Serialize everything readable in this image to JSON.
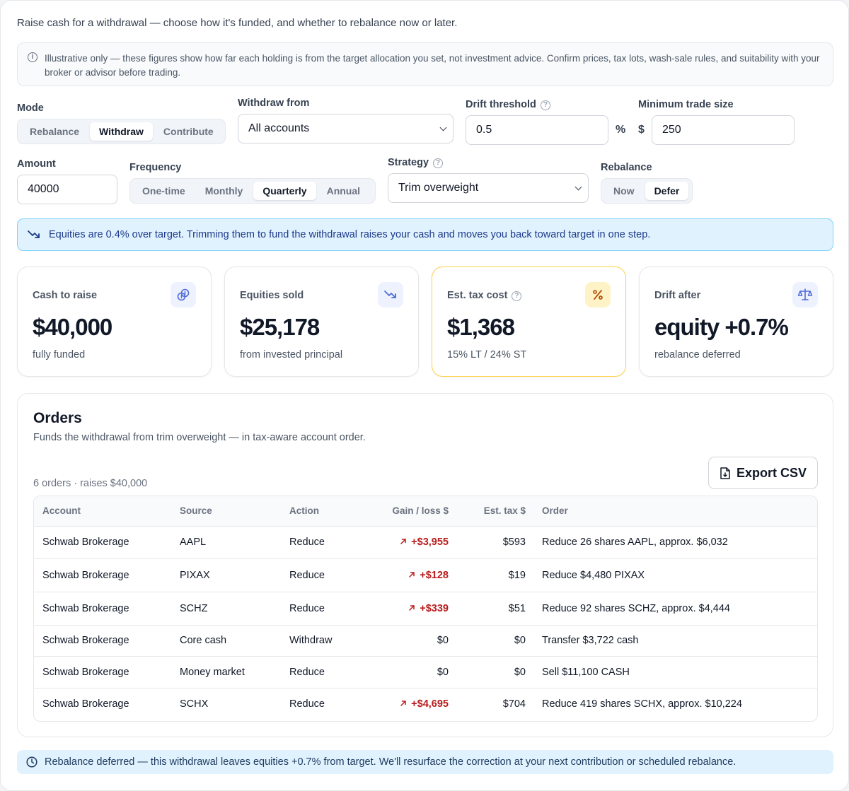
{
  "intro": "Raise cash for a withdrawal — choose how it's funded, and whether to rebalance now or later.",
  "notice": "Illustrative only — these figures show how far each holding is from the target allocation you set, not investment advice. Confirm prices, tax lots, wash-sale rules, and suitability with your broker or advisor before trading.",
  "mode": {
    "label": "Mode",
    "options": [
      "Rebalance",
      "Withdraw",
      "Contribute"
    ],
    "selected": "Withdraw"
  },
  "withdraw_from": {
    "label": "Withdraw from",
    "value": "All accounts"
  },
  "drift_threshold": {
    "label": "Drift threshold",
    "value": "0.5",
    "unit": "%"
  },
  "min_trade": {
    "label": "Minimum trade size",
    "currency": "$",
    "value": "250"
  },
  "amount": {
    "label": "Amount",
    "value": "40000"
  },
  "frequency": {
    "label": "Frequency",
    "options": [
      "One-time",
      "Monthly",
      "Quarterly",
      "Annual"
    ],
    "selected": "Quarterly"
  },
  "strategy": {
    "label": "Strategy",
    "value": "Trim overweight"
  },
  "rebalance": {
    "label": "Rebalance",
    "options": [
      "Now",
      "Defer"
    ],
    "selected": "Defer"
  },
  "banner": "Equities are 0.4% over target. Trimming them to fund the withdrawal raises your cash and moves you back toward target in one step.",
  "cards": [
    {
      "label": "Cash to raise",
      "value": "$40,000",
      "sub": "fully funded",
      "icon": "coins-icon"
    },
    {
      "label": "Equities sold",
      "value": "$25,178",
      "sub": "from invested principal",
      "icon": "trending-down-icon"
    },
    {
      "label": "Est. tax cost",
      "value": "$1,368",
      "sub": "15% LT / 24% ST",
      "icon": "percent-icon"
    },
    {
      "label": "Drift after",
      "value": "equity +0.7%",
      "sub": "rebalance deferred",
      "icon": "scale-icon"
    }
  ],
  "orders": {
    "title": "Orders",
    "subtitle": "Funds the withdrawal from trim overweight — in tax-aware account order.",
    "count": "6 orders · raises $40,000",
    "export_label": "Export CSV",
    "columns": [
      "Account",
      "Source",
      "Action",
      "Gain / loss $",
      "Est. tax $",
      "Order"
    ],
    "rows": [
      {
        "account": "Schwab Brokerage",
        "source": "AAPL",
        "action": "Reduce",
        "gain": "+$3,955",
        "gain_up": true,
        "tax": "$593",
        "order": "Reduce 26 shares AAPL, approx. $6,032"
      },
      {
        "account": "Schwab Brokerage",
        "source": "PIXAX",
        "action": "Reduce",
        "gain": "+$128",
        "gain_up": true,
        "tax": "$19",
        "order": "Reduce $4,480 PIXAX"
      },
      {
        "account": "Schwab Brokerage",
        "source": "SCHZ",
        "action": "Reduce",
        "gain": "+$339",
        "gain_up": true,
        "tax": "$51",
        "order": "Reduce 92 shares SCHZ, approx. $4,444"
      },
      {
        "account": "Schwab Brokerage",
        "source": "Core cash",
        "action": "Withdraw",
        "gain": "$0",
        "gain_up": false,
        "tax": "$0",
        "order": "Transfer $3,722 cash"
      },
      {
        "account": "Schwab Brokerage",
        "source": "Money market",
        "action": "Reduce",
        "gain": "$0",
        "gain_up": false,
        "tax": "$0",
        "order": "Sell $11,100 CASH"
      },
      {
        "account": "Schwab Brokerage",
        "source": "SCHX",
        "action": "Reduce",
        "gain": "+$4,695",
        "gain_up": true,
        "tax": "$704",
        "order": "Reduce 419 shares SCHX, approx. $10,224"
      }
    ]
  },
  "footer": "Rebalance deferred — this withdrawal leaves equities +0.7% from target. We'll resurface the correction at your next contribution or scheduled rebalance.",
  "colors": {
    "accent": "#1e3a8a",
    "gain": "#b91c1c",
    "banner_bg": "#e0f2fe",
    "warn_border": "#fcd34d"
  }
}
